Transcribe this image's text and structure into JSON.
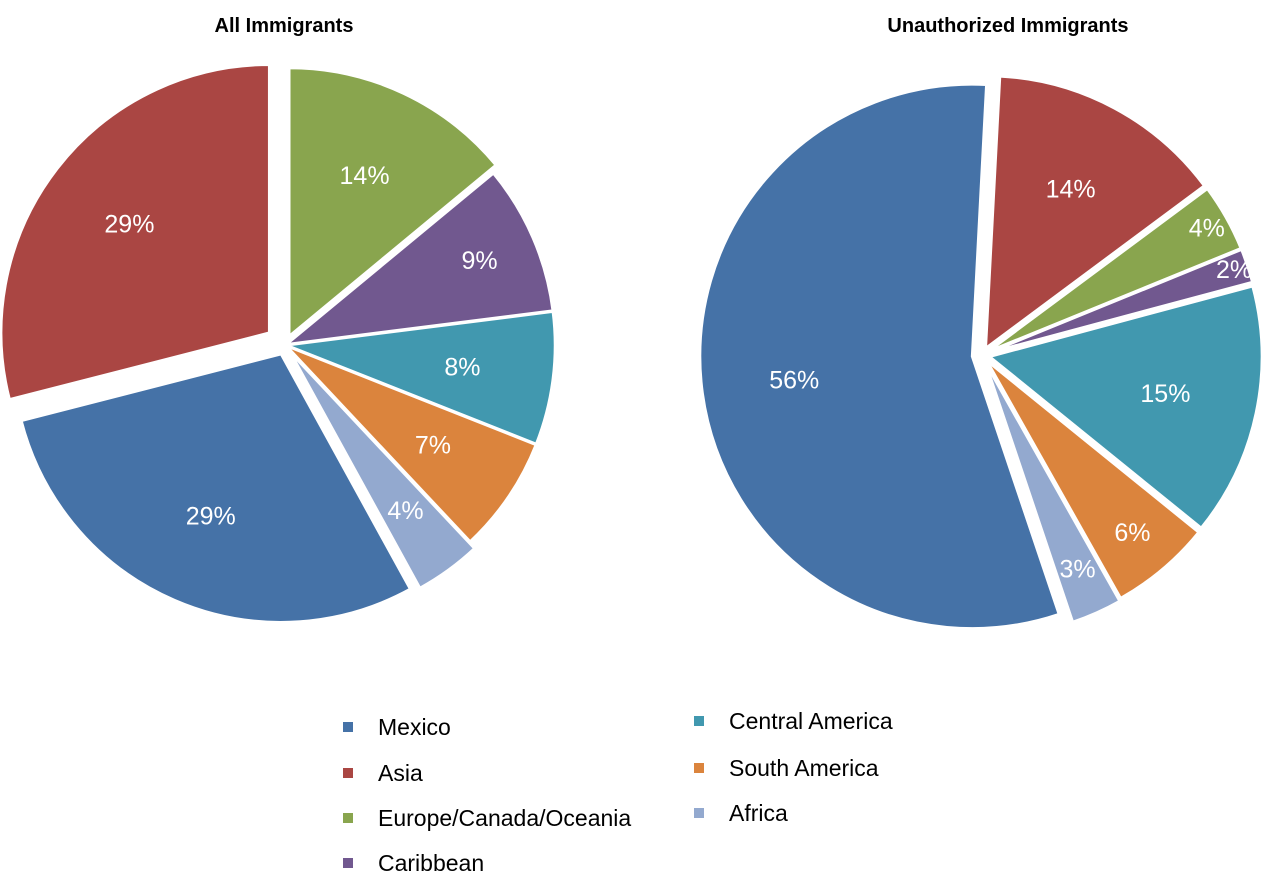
{
  "chart_data": [
    {
      "type": "pie",
      "title": "All Immigrants",
      "slices": [
        {
          "name": "Mexico",
          "value": 29,
          "label": "29%",
          "color": "#4572A7"
        },
        {
          "name": "Asia",
          "value": 29,
          "label": "29%",
          "color": "#AA4643"
        },
        {
          "name": "Europe/Canada/Oceania",
          "value": 14,
          "label": "14%",
          "color": "#89A54E"
        },
        {
          "name": "Caribbean",
          "value": 9,
          "label": "9%",
          "color": "#71588F"
        },
        {
          "name": "Central America",
          "value": 8,
          "label": "8%",
          "color": "#4198AF"
        },
        {
          "name": "South America",
          "value": 7,
          "label": "7%",
          "color": "#DB843D"
        },
        {
          "name": "Africa",
          "value": 4,
          "label": "4%",
          "color": "#93A9CF"
        }
      ]
    },
    {
      "type": "pie",
      "title": "Unauthorized Immigrants",
      "slices": [
        {
          "name": "Mexico",
          "value": 56,
          "label": "56%",
          "color": "#4572A7"
        },
        {
          "name": "Asia",
          "value": 14,
          "label": "14%",
          "color": "#AA4643"
        },
        {
          "name": "Europe/Canada/Oceania",
          "value": 4,
          "label": "4%",
          "color": "#89A54E"
        },
        {
          "name": "Caribbean",
          "value": 2,
          "label": "2%",
          "color": "#71588F"
        },
        {
          "name": "Central America",
          "value": 15,
          "label": "15%",
          "color": "#4198AF"
        },
        {
          "name": "South America",
          "value": 6,
          "label": "6%",
          "color": "#DB843D"
        },
        {
          "name": "Africa",
          "value": 3,
          "label": "3%",
          "color": "#93A9CF"
        }
      ]
    }
  ],
  "legend": {
    "items": [
      {
        "label": "Mexico",
        "color": "#4572A7"
      },
      {
        "label": "Asia",
        "color": "#AA4643"
      },
      {
        "label": "Europe/Canada/Oceania",
        "color": "#89A54E"
      },
      {
        "label": "Caribbean",
        "color": "#71588F"
      },
      {
        "label": "Central America",
        "color": "#4198AF"
      },
      {
        "label": "South America",
        "color": "#DB843D"
      },
      {
        "label": "Africa",
        "color": "#93A9CF"
      }
    ]
  }
}
